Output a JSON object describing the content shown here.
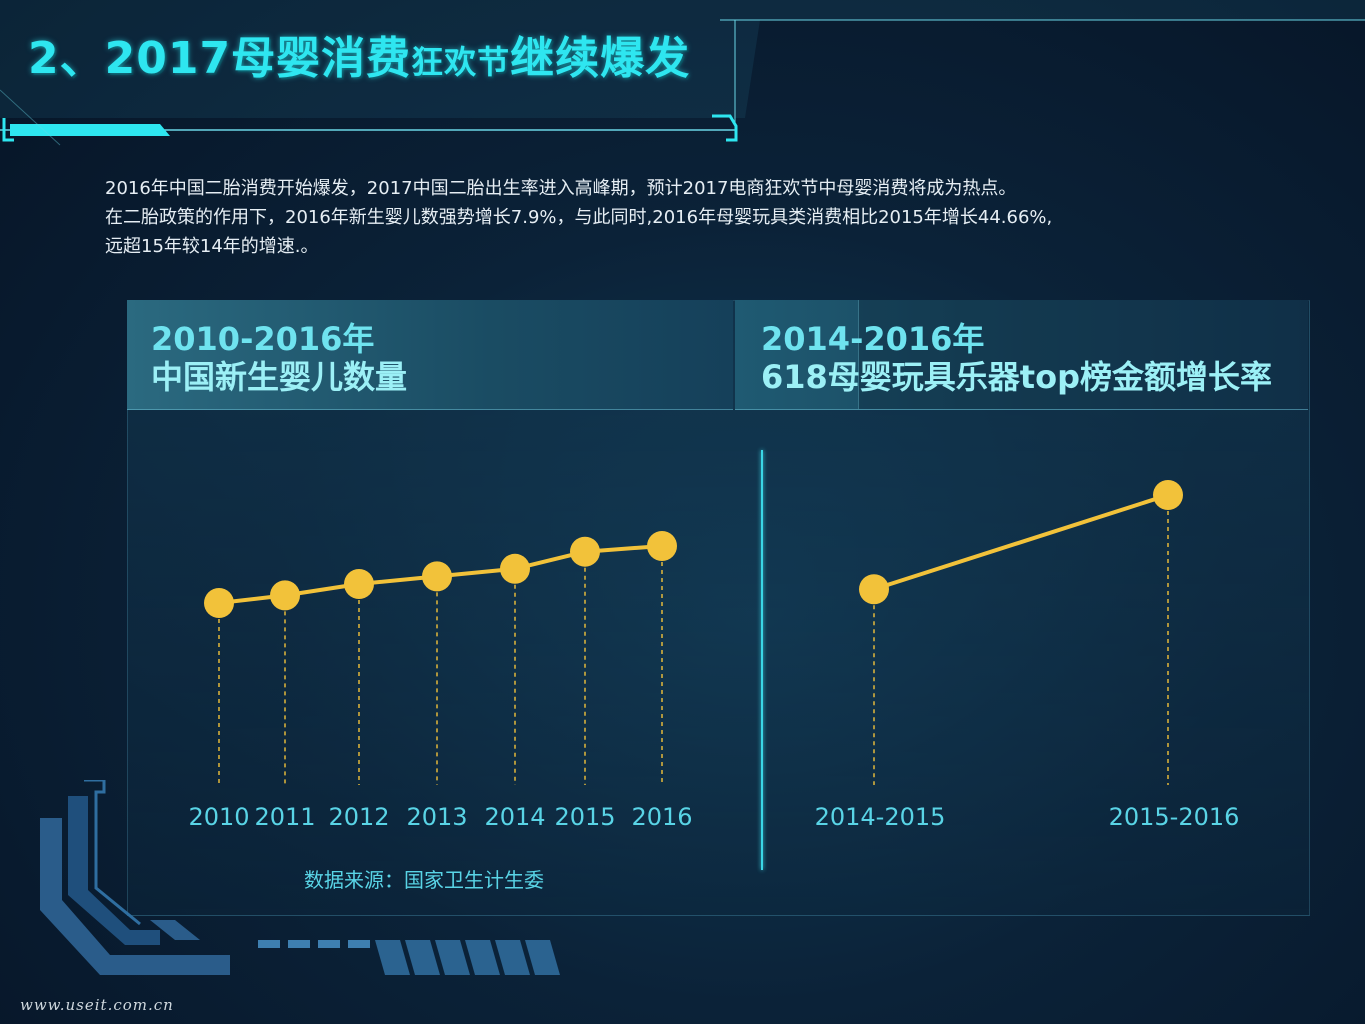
{
  "header": {
    "title_parts": [
      "2、2017",
      "母婴消费",
      "狂欢节",
      "继续爆发"
    ]
  },
  "intro": {
    "lines": [
      "2016年中国二胎消费开始爆发，2017中国二胎出生率进入高峰期，预计2017电商狂欢节中母婴消费将成为热点。",
      "在二胎政策的作用下，2016年新生婴儿数强势增长7.9%，与此同时,2016年母婴玩具类消费相比2015年增长44.66%,",
      "远超15年较14年的增速.。"
    ]
  },
  "panels": {
    "left": {
      "title_line1": "2010-2016年",
      "title_line2": "中国新生婴儿数量"
    },
    "right": {
      "title_line1": "2014-2016年",
      "title_line2": "618母婴玩具乐器top榜金额增长率"
    }
  },
  "source": "数据来源：国家卫生计生委",
  "watermark": "www.useit.com.cn",
  "colors": {
    "accent": "#2ee6f0",
    "line": "#f2c23a",
    "label": "#59d4e6"
  },
  "chart_data": [
    {
      "type": "line",
      "categories": [
        "2010",
        "2011",
        "2012",
        "2013",
        "2014",
        "2015",
        "2016"
      ],
      "values": [
        0.3,
        0.34,
        0.4,
        0.44,
        0.48,
        0.57,
        0.6
      ]
    },
    {
      "type": "line",
      "categories": [
        "2014-2015",
        "2015-2016"
      ],
      "values": [
        0.35,
        1.0
      ]
    }
  ]
}
